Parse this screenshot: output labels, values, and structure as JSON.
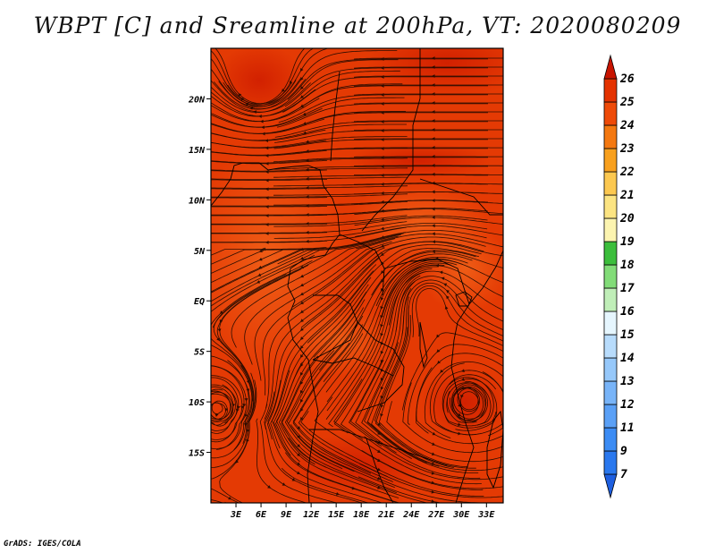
{
  "title": "WBPT [C] and Sreamline at 200hPa, VT: 2020080209",
  "footer": "GrADS: IGES/COLA",
  "axes": {
    "lat_ticks": [
      {
        "label": "20N",
        "value": 20
      },
      {
        "label": "15N",
        "value": 15
      },
      {
        "label": "10N",
        "value": 10
      },
      {
        "label": "5N",
        "value": 5
      },
      {
        "label": "EQ",
        "value": 0
      },
      {
        "label": "5S",
        "value": -5
      },
      {
        "label": "10S",
        "value": -10
      },
      {
        "label": "15S",
        "value": -15
      }
    ],
    "lon_ticks": [
      {
        "label": "3E",
        "value": 3
      },
      {
        "label": "6E",
        "value": 6
      },
      {
        "label": "9E",
        "value": 9
      },
      {
        "label": "12E",
        "value": 12
      },
      {
        "label": "15E",
        "value": 15
      },
      {
        "label": "18E",
        "value": 18
      },
      {
        "label": "21E",
        "value": 21
      },
      {
        "label": "24E",
        "value": 24
      },
      {
        "label": "27E",
        "value": 27
      },
      {
        "label": "30E",
        "value": 30
      },
      {
        "label": "33E",
        "value": 33
      }
    ],
    "lon_range": [
      0,
      35
    ],
    "lat_range": [
      -20,
      25
    ]
  },
  "colorbar": {
    "levels": [
      "7",
      "9",
      "11",
      "12",
      "13",
      "14",
      "15",
      "16",
      "17",
      "18",
      "19",
      "20",
      "21",
      "22",
      "23",
      "24",
      "25",
      "26"
    ],
    "colors": [
      "#1e5fe0",
      "#2a78ee",
      "#3c8cf4",
      "#5aa0f6",
      "#78b4f8",
      "#96c8fa",
      "#b8dcfc",
      "#e6f6fe",
      "#c0eeb8",
      "#82dc78",
      "#3cbe3c",
      "#fcf4b0",
      "#fce482",
      "#fcc850",
      "#f8a01e",
      "#f47810",
      "#ee4a08",
      "#e43200",
      "#c81400"
    ]
  }
}
